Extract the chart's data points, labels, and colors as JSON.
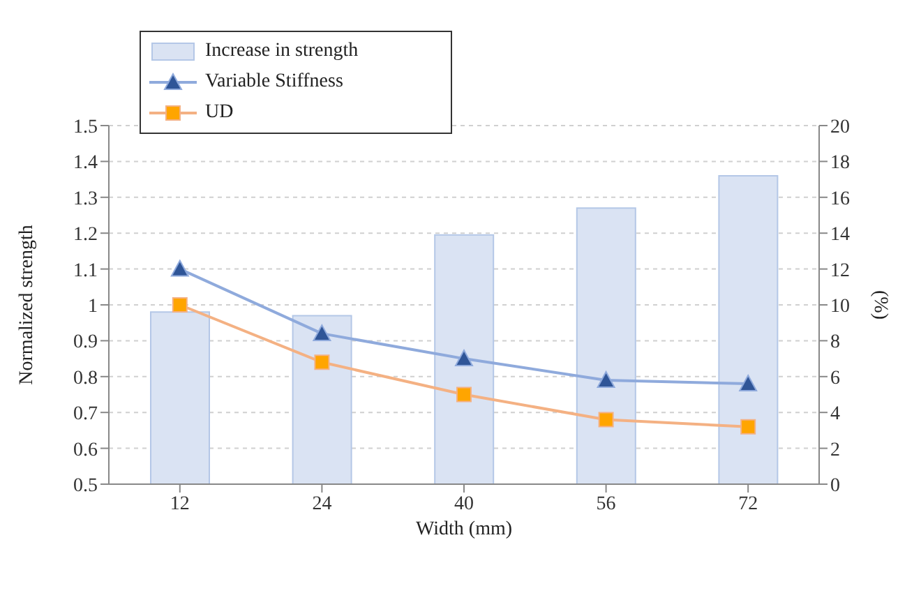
{
  "chart_data": {
    "type": "line",
    "xlabel": "Width (mm)",
    "ylabel": "Normalized strength",
    "y2label": "(%)",
    "categories": [
      "12",
      "24",
      "40",
      "56",
      "72"
    ],
    "series": [
      {
        "name": "Increase in strength",
        "type": "bar",
        "axis": "y2",
        "color": "#dae3f3",
        "values": [
          9.6,
          9.4,
          13.9,
          15.4,
          17.2
        ]
      },
      {
        "name": "Variable Stiffness",
        "marker": "triangle",
        "color": "#8faadc",
        "values": [
          1.1,
          0.92,
          0.85,
          0.79,
          0.78
        ]
      },
      {
        "name": "UD",
        "marker": "square",
        "color": "#f4b183",
        "values": [
          1.0,
          0.84,
          0.75,
          0.68,
          0.66
        ]
      }
    ],
    "ylim": [
      0.5,
      1.5
    ],
    "yticks": [
      0.5,
      0.6,
      0.7,
      0.8,
      0.9,
      1,
      1.1,
      1.2,
      1.3,
      1.4,
      1.5
    ],
    "y2lim": [
      0,
      20
    ],
    "y2ticks": [
      0,
      2,
      4,
      6,
      8,
      10,
      12,
      14,
      16,
      18,
      20
    ],
    "grid": "y",
    "legend": "top left"
  }
}
